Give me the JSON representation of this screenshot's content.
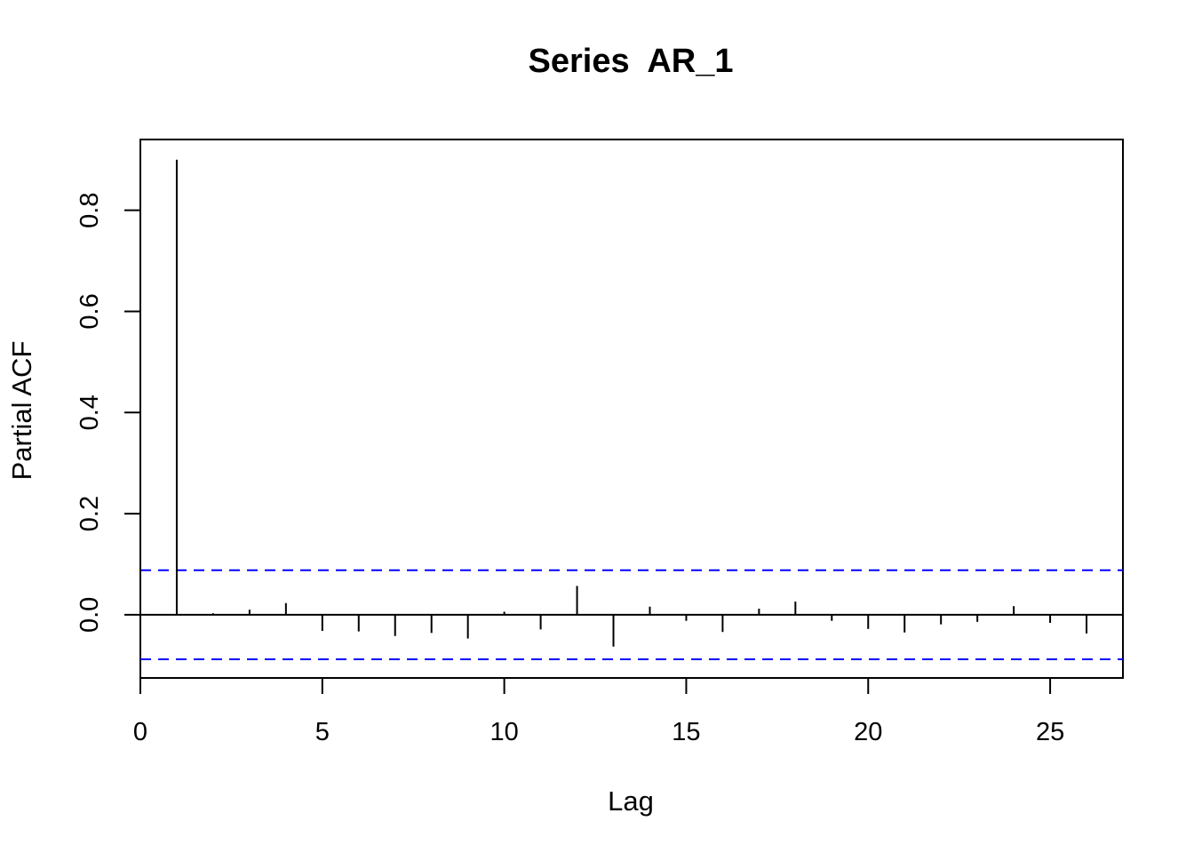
{
  "chart_data": {
    "type": "bar",
    "subtype": "pacf-spikes",
    "title": "Series  AR_1",
    "xlabel": "Lag",
    "ylabel": "Partial ACF",
    "xlim": [
      0,
      27
    ],
    "ylim": [
      -0.125,
      0.94
    ],
    "x_ticks": [
      0,
      5,
      10,
      15,
      20,
      25
    ],
    "x_tick_labels": [
      "0",
      "5",
      "10",
      "15",
      "20",
      "25"
    ],
    "y_ticks": [
      0.0,
      0.2,
      0.4,
      0.6,
      0.8
    ],
    "y_tick_labels": [
      "0.0",
      "0.2",
      "0.4",
      "0.6",
      "0.8"
    ],
    "lags": [
      1,
      2,
      3,
      4,
      5,
      6,
      7,
      8,
      9,
      10,
      11,
      12,
      13,
      14,
      15,
      16,
      17,
      18,
      19,
      20,
      21,
      22,
      23,
      24,
      25,
      26
    ],
    "values": [
      0.9,
      0.003,
      0.01,
      0.023,
      -0.032,
      -0.033,
      -0.042,
      -0.036,
      -0.047,
      0.006,
      -0.029,
      0.057,
      -0.063,
      0.016,
      -0.012,
      -0.034,
      0.012,
      0.026,
      -0.012,
      -0.028,
      -0.035,
      -0.019,
      -0.014,
      0.017,
      -0.016,
      -0.037
    ],
    "confidence_limit": 0.088,
    "confidence_color": "#0000ff",
    "spike_color": "#000000",
    "grid": false,
    "legend": "none"
  }
}
